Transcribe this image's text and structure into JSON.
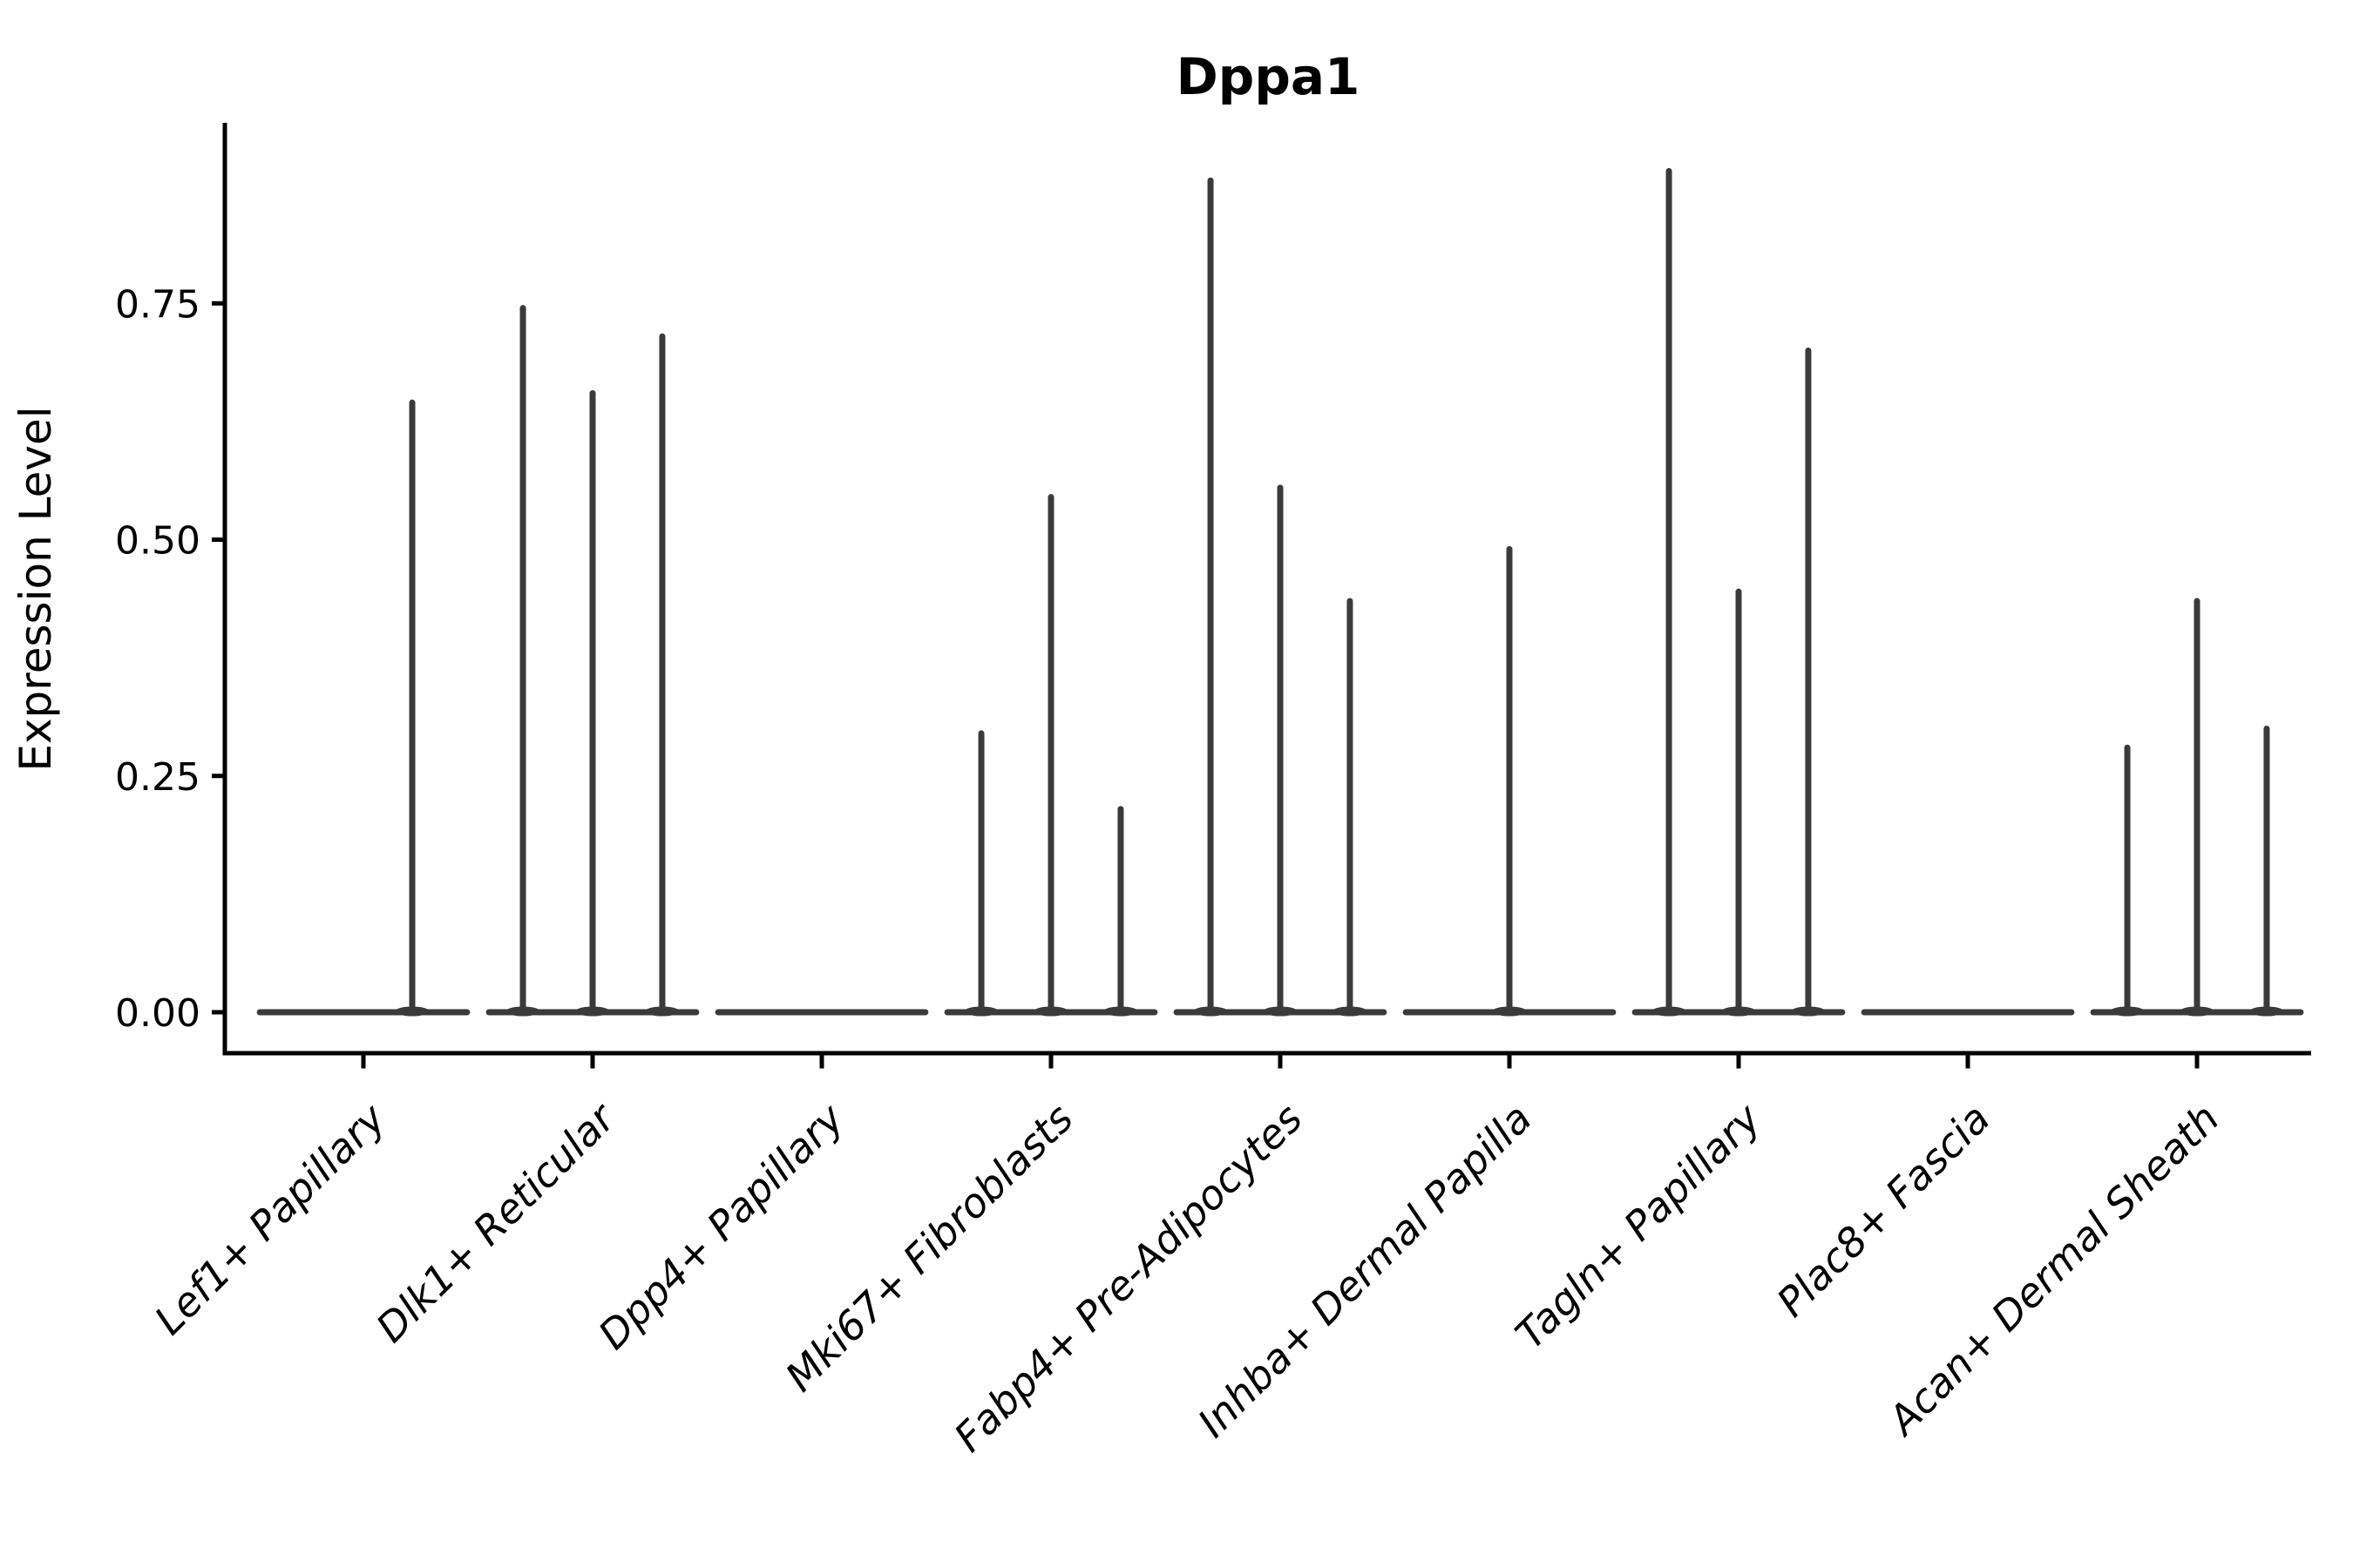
{
  "figure": {
    "background": "#ffffff"
  },
  "chart_data": {
    "type": "violin",
    "title": "Dppa1",
    "xlabel": "",
    "ylabel": "Expression Level",
    "grid": false,
    "legend": null,
    "violin_color": "#3a3a3a",
    "axis_color": "#000000",
    "text_color": "#000000",
    "ylim": [
      -0.045,
      0.941
    ],
    "yticks": [
      {
        "label": "0.00",
        "value": 0.0
      },
      {
        "label": "0.25",
        "value": 0.25
      },
      {
        "label": "0.50",
        "value": 0.5
      },
      {
        "label": "0.75",
        "value": 0.75
      }
    ],
    "categories": [
      "Lef1+ Papillary",
      "Dlk1+ Reticular",
      "Dpp4+ Papillary",
      "Mki67+ Fibroblasts",
      "Fabp4+ Pre-Adipocytes",
      "Inhba+ Dermal Papilla",
      "Tagln+ Papillary",
      "Plac8+ Fascia",
      "Acan+ Dermal Sheath"
    ],
    "baseline_value": 0.0,
    "baseline_halfwidth": 0.452,
    "series": [
      {
        "category": "Lef1+ Papillary",
        "spikes": [
          {
            "pos": 0.213,
            "value": 0.645
          }
        ]
      },
      {
        "category": "Dlk1+ Reticular",
        "spikes": [
          {
            "pos": -0.304,
            "value": 0.745
          },
          {
            "pos": 0.0,
            "value": 0.655
          },
          {
            "pos": 0.304,
            "value": 0.715
          }
        ]
      },
      {
        "category": "Dpp4+ Papillary",
        "spikes": []
      },
      {
        "category": "Mki67+ Fibroblasts",
        "spikes": [
          {
            "pos": -0.304,
            "value": 0.295
          },
          {
            "pos": 0.0,
            "value": 0.545
          },
          {
            "pos": 0.304,
            "value": 0.215
          }
        ]
      },
      {
        "category": "Fabp4+ Pre-Adipocytes",
        "spikes": [
          {
            "pos": -0.304,
            "value": 0.88
          },
          {
            "pos": 0.0,
            "value": 0.555
          },
          {
            "pos": 0.304,
            "value": 0.435
          }
        ]
      },
      {
        "category": "Inhba+ Dermal Papilla",
        "spikes": [
          {
            "pos": 0.0,
            "value": 0.49
          }
        ]
      },
      {
        "category": "Tagln+ Papillary",
        "spikes": [
          {
            "pos": -0.304,
            "value": 0.89
          },
          {
            "pos": 0.0,
            "value": 0.445
          },
          {
            "pos": 0.304,
            "value": 0.7
          }
        ]
      },
      {
        "category": "Plac8+ Fascia",
        "spikes": []
      },
      {
        "category": "Acan+ Dermal Sheath",
        "spikes": [
          {
            "pos": -0.304,
            "value": 0.28
          },
          {
            "pos": 0.0,
            "value": 0.435
          },
          {
            "pos": 0.304,
            "value": 0.3
          }
        ]
      }
    ]
  }
}
